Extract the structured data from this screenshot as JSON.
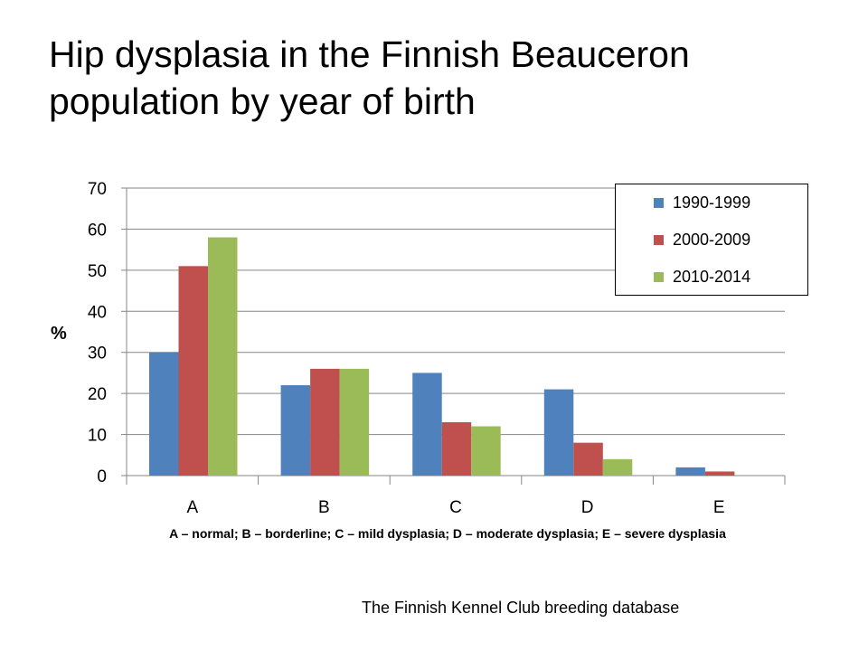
{
  "chart_data": {
    "type": "bar",
    "title": "Hip dysplasia in the Finnish Beauceron population by year of birth",
    "ylabel": "%",
    "xlabel": "A – normal; B – borderline; C – mild dysplasia; D – moderate dysplasia; E – severe dysplasia",
    "categories": [
      "A",
      "B",
      "C",
      "D",
      "E"
    ],
    "series": [
      {
        "name": "1990-1999",
        "color": "#4F81BD",
        "values": [
          30,
          22,
          25,
          21,
          2
        ]
      },
      {
        "name": "2000-2009",
        "color": "#C0504D",
        "values": [
          51,
          26,
          13,
          8,
          1
        ]
      },
      {
        "name": "2010-2014",
        "color": "#9BBB59",
        "values": [
          58,
          26,
          12,
          4,
          0
        ]
      }
    ],
    "ylim": [
      0,
      70
    ],
    "yticks": [
      0,
      10,
      20,
      30,
      40,
      50,
      60,
      70
    ],
    "grid": true,
    "legend_position": "top-right"
  },
  "source": "The Finnish Kennel Club breeding database"
}
